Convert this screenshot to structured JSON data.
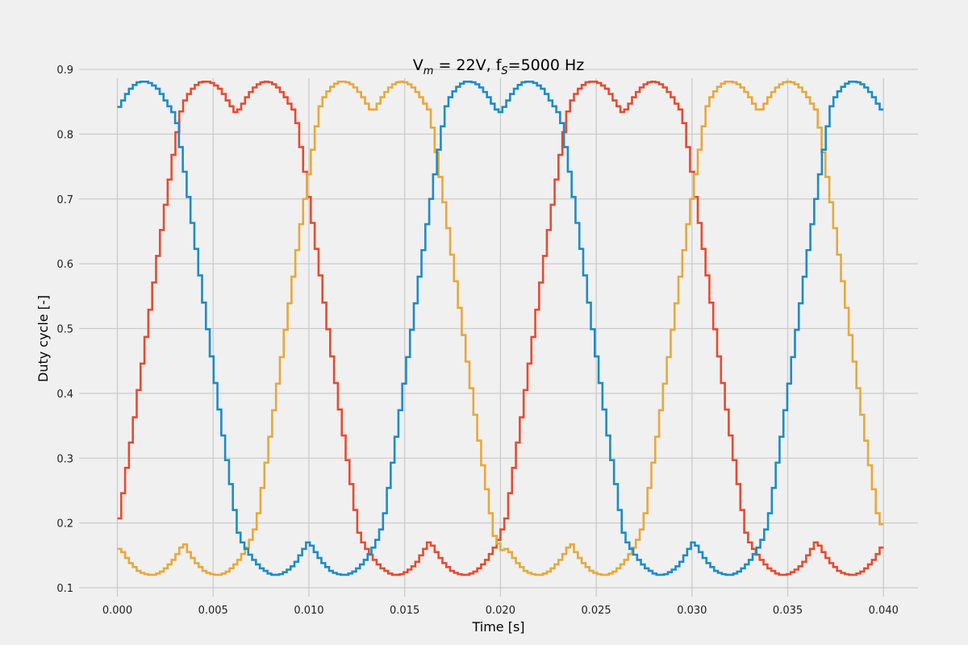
{
  "chart_data": {
    "type": "line",
    "title_main": "V",
    "title_sub": "m",
    "title_rest": " = 22V, f",
    "title_sub2": "S",
    "title_end": "=5000 Hz",
    "xlabel": "Time [s]",
    "ylabel": "Duty cycle [-]",
    "xlim": [
      -0.002,
      0.0418
    ],
    "ylim": [
      0.1,
      0.9
    ],
    "xticks": [
      "0.000",
      "0.005",
      "0.010",
      "0.015",
      "0.020",
      "0.025",
      "0.030",
      "0.035",
      "0.040"
    ],
    "yticks": [
      "0.1",
      "0.2",
      "0.3",
      "0.4",
      "0.5",
      "0.6",
      "0.7",
      "0.8",
      "0.9"
    ],
    "grid": true,
    "step_style": "steps-post",
    "x": [
      0.0,
      0.04
    ],
    "series": [
      {
        "color": "#e84a2e",
        "samples": [
          0.207,
          0.246,
          0.285,
          0.324,
          0.363,
          0.405,
          0.446,
          0.487,
          0.529,
          0.571,
          0.612,
          0.652,
          0.691,
          0.73,
          0.768,
          0.803,
          0.835,
          0.852,
          0.862,
          0.87,
          0.876,
          0.88,
          0.881,
          0.881,
          0.879,
          0.875,
          0.87,
          0.862,
          0.852,
          0.843,
          0.834,
          0.838,
          0.847,
          0.857,
          0.865,
          0.872,
          0.877,
          0.88,
          0.881,
          0.88,
          0.877,
          0.872,
          0.865,
          0.857,
          0.847,
          0.838,
          0.817,
          0.78,
          0.742,
          0.703,
          0.663,
          0.623,
          0.582,
          0.54,
          0.499,
          0.457,
          0.416,
          0.375,
          0.335,
          0.297,
          0.26,
          0.22,
          0.185,
          0.17,
          0.16,
          0.151,
          0.143,
          0.136,
          0.13,
          0.126,
          0.122,
          0.12,
          0.12,
          0.121,
          0.124,
          0.128,
          0.133,
          0.14,
          0.15,
          0.16,
          0.17,
          0.165,
          0.155,
          0.146,
          0.138,
          0.132,
          0.126,
          0.123,
          0.121,
          0.12,
          0.12,
          0.122,
          0.125,
          0.13,
          0.136,
          0.143,
          0.152,
          0.162,
          0.174,
          0.19,
          0.207,
          0.246,
          0.285,
          0.324,
          0.363,
          0.405,
          0.446,
          0.487,
          0.529,
          0.571,
          0.612,
          0.652,
          0.691,
          0.73,
          0.768,
          0.803,
          0.835,
          0.852,
          0.862,
          0.87,
          0.876,
          0.88,
          0.881,
          0.881,
          0.879,
          0.875,
          0.87,
          0.862,
          0.852,
          0.843,
          0.834,
          0.838,
          0.847,
          0.857,
          0.865,
          0.872,
          0.877,
          0.88,
          0.881,
          0.88,
          0.877,
          0.872,
          0.865,
          0.857,
          0.847,
          0.838,
          0.817,
          0.78,
          0.742,
          0.703,
          0.663,
          0.623,
          0.582,
          0.54,
          0.499,
          0.457,
          0.416,
          0.375,
          0.335,
          0.297,
          0.26,
          0.22,
          0.185,
          0.17,
          0.16,
          0.151,
          0.143,
          0.136,
          0.13,
          0.126,
          0.122,
          0.12,
          0.12,
          0.121,
          0.124,
          0.128,
          0.133,
          0.14,
          0.15,
          0.16,
          0.17,
          0.165,
          0.155,
          0.146,
          0.138,
          0.132,
          0.126,
          0.123,
          0.121,
          0.12,
          0.12,
          0.122,
          0.125,
          0.13,
          0.136,
          0.143,
          0.152,
          0.162
        ]
      },
      {
        "color": "#e8a838",
        "samples": [
          0.16,
          0.155,
          0.146,
          0.138,
          0.132,
          0.126,
          0.123,
          0.121,
          0.12,
          0.12,
          0.122,
          0.125,
          0.13,
          0.136,
          0.143,
          0.152,
          0.162,
          0.167,
          0.155,
          0.146,
          0.138,
          0.132,
          0.126,
          0.123,
          0.121,
          0.12,
          0.12,
          0.122,
          0.125,
          0.13,
          0.136,
          0.143,
          0.152,
          0.162,
          0.174,
          0.19,
          0.215,
          0.254,
          0.293,
          0.333,
          0.374,
          0.415,
          0.456,
          0.498,
          0.539,
          0.58,
          0.621,
          0.661,
          0.7,
          0.738,
          0.776,
          0.812,
          0.843,
          0.857,
          0.866,
          0.873,
          0.878,
          0.881,
          0.881,
          0.88,
          0.877,
          0.872,
          0.865,
          0.857,
          0.847,
          0.838,
          0.838,
          0.847,
          0.857,
          0.865,
          0.872,
          0.877,
          0.88,
          0.881,
          0.88,
          0.877,
          0.872,
          0.865,
          0.857,
          0.847,
          0.838,
          0.81,
          0.772,
          0.734,
          0.695,
          0.655,
          0.614,
          0.573,
          0.532,
          0.49,
          0.449,
          0.408,
          0.367,
          0.327,
          0.289,
          0.252,
          0.215,
          0.18,
          0.168,
          0.158,
          0.16,
          0.155,
          0.146,
          0.138,
          0.132,
          0.126,
          0.123,
          0.121,
          0.12,
          0.12,
          0.122,
          0.125,
          0.13,
          0.136,
          0.143,
          0.152,
          0.162,
          0.167,
          0.155,
          0.146,
          0.138,
          0.132,
          0.126,
          0.123,
          0.121,
          0.12,
          0.12,
          0.122,
          0.125,
          0.13,
          0.136,
          0.143,
          0.152,
          0.162,
          0.174,
          0.19,
          0.215,
          0.254,
          0.293,
          0.333,
          0.374,
          0.415,
          0.456,
          0.498,
          0.539,
          0.58,
          0.621,
          0.661,
          0.7,
          0.738,
          0.776,
          0.812,
          0.843,
          0.857,
          0.866,
          0.873,
          0.878,
          0.881,
          0.881,
          0.88,
          0.877,
          0.872,
          0.865,
          0.857,
          0.847,
          0.838,
          0.838,
          0.847,
          0.857,
          0.865,
          0.872,
          0.877,
          0.88,
          0.881,
          0.88,
          0.877,
          0.872,
          0.865,
          0.857,
          0.847,
          0.838,
          0.81,
          0.772,
          0.734,
          0.695,
          0.655,
          0.614,
          0.573,
          0.532,
          0.49,
          0.449,
          0.408,
          0.367,
          0.327,
          0.289,
          0.252,
          0.215,
          0.198
        ]
      },
      {
        "color": "#1a8cc8",
        "samples": [
          0.842,
          0.852,
          0.862,
          0.87,
          0.876,
          0.88,
          0.881,
          0.881,
          0.879,
          0.875,
          0.87,
          0.862,
          0.852,
          0.843,
          0.834,
          0.817,
          0.78,
          0.742,
          0.703,
          0.663,
          0.623,
          0.582,
          0.54,
          0.499,
          0.457,
          0.416,
          0.375,
          0.335,
          0.297,
          0.26,
          0.22,
          0.185,
          0.17,
          0.16,
          0.151,
          0.143,
          0.136,
          0.13,
          0.126,
          0.122,
          0.12,
          0.12,
          0.121,
          0.124,
          0.128,
          0.133,
          0.14,
          0.15,
          0.16,
          0.17,
          0.165,
          0.155,
          0.146,
          0.138,
          0.132,
          0.126,
          0.123,
          0.121,
          0.12,
          0.12,
          0.122,
          0.125,
          0.13,
          0.136,
          0.143,
          0.152,
          0.162,
          0.174,
          0.19,
          0.215,
          0.254,
          0.293,
          0.333,
          0.374,
          0.415,
          0.456,
          0.498,
          0.539,
          0.58,
          0.621,
          0.661,
          0.7,
          0.738,
          0.776,
          0.812,
          0.843,
          0.857,
          0.866,
          0.873,
          0.878,
          0.881,
          0.881,
          0.88,
          0.877,
          0.872,
          0.865,
          0.857,
          0.847,
          0.838,
          0.834,
          0.842,
          0.852,
          0.862,
          0.87,
          0.876,
          0.88,
          0.881,
          0.881,
          0.879,
          0.875,
          0.87,
          0.862,
          0.852,
          0.843,
          0.834,
          0.817,
          0.78,
          0.742,
          0.703,
          0.663,
          0.623,
          0.582,
          0.54,
          0.499,
          0.457,
          0.416,
          0.375,
          0.335,
          0.297,
          0.26,
          0.22,
          0.185,
          0.17,
          0.16,
          0.151,
          0.143,
          0.136,
          0.13,
          0.126,
          0.122,
          0.12,
          0.12,
          0.121,
          0.124,
          0.128,
          0.133,
          0.14,
          0.15,
          0.16,
          0.17,
          0.165,
          0.155,
          0.146,
          0.138,
          0.132,
          0.126,
          0.123,
          0.121,
          0.12,
          0.12,
          0.122,
          0.125,
          0.13,
          0.136,
          0.143,
          0.152,
          0.162,
          0.174,
          0.19,
          0.215,
          0.254,
          0.293,
          0.333,
          0.374,
          0.415,
          0.456,
          0.498,
          0.539,
          0.58,
          0.621,
          0.661,
          0.7,
          0.738,
          0.776,
          0.812,
          0.843,
          0.857,
          0.866,
          0.873,
          0.878,
          0.881,
          0.881,
          0.88,
          0.877,
          0.872,
          0.865,
          0.857,
          0.847,
          0.838
        ]
      }
    ]
  }
}
